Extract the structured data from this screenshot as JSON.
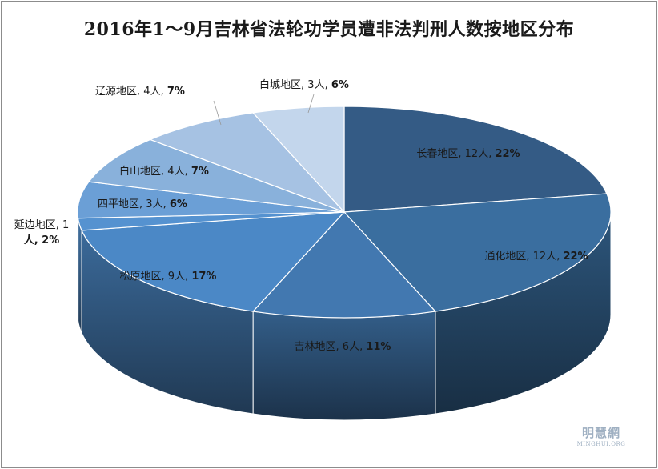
{
  "chart_data": {
    "type": "pie",
    "title": "2016年1～9月吉林省法轮功学员遭非法判刑人数按地区分布",
    "slices": [
      {
        "label": "长春地区, 12人, 22%",
        "value": 12,
        "percent": 22,
        "color": "#345b85"
      },
      {
        "label": "通化地区, 12人, 22%",
        "value": 12,
        "percent": 22,
        "color": "#3a6e9f"
      },
      {
        "label": "吉林地区, 6人, 11%",
        "value": 6,
        "percent": 11,
        "color": "#4278b0"
      },
      {
        "label": "松原地区, 9人, 17%",
        "value": 9,
        "percent": 17,
        "color": "#4b88c6"
      },
      {
        "label": "延边地区, 1人, 2%",
        "value": 1,
        "percent": 2,
        "color": "#5592d0"
      },
      {
        "label": "四平地区, 3人, 6%",
        "value": 3,
        "percent": 6,
        "color": "#6b9fd6"
      },
      {
        "label": "白山地区, 4人, 7%",
        "value": 4,
        "percent": 7,
        "color": "#89b1db"
      },
      {
        "label": "辽源地区, 4人, 7%",
        "value": 4,
        "percent": 7,
        "color": "#a6c2e3"
      },
      {
        "label": "白城地区, 3人, 6%",
        "value": 3,
        "percent": 6,
        "color": "#c3d6ec"
      }
    ]
  },
  "watermark": {
    "chinese": "明慧網",
    "english": "MINGHUI.ORG"
  }
}
